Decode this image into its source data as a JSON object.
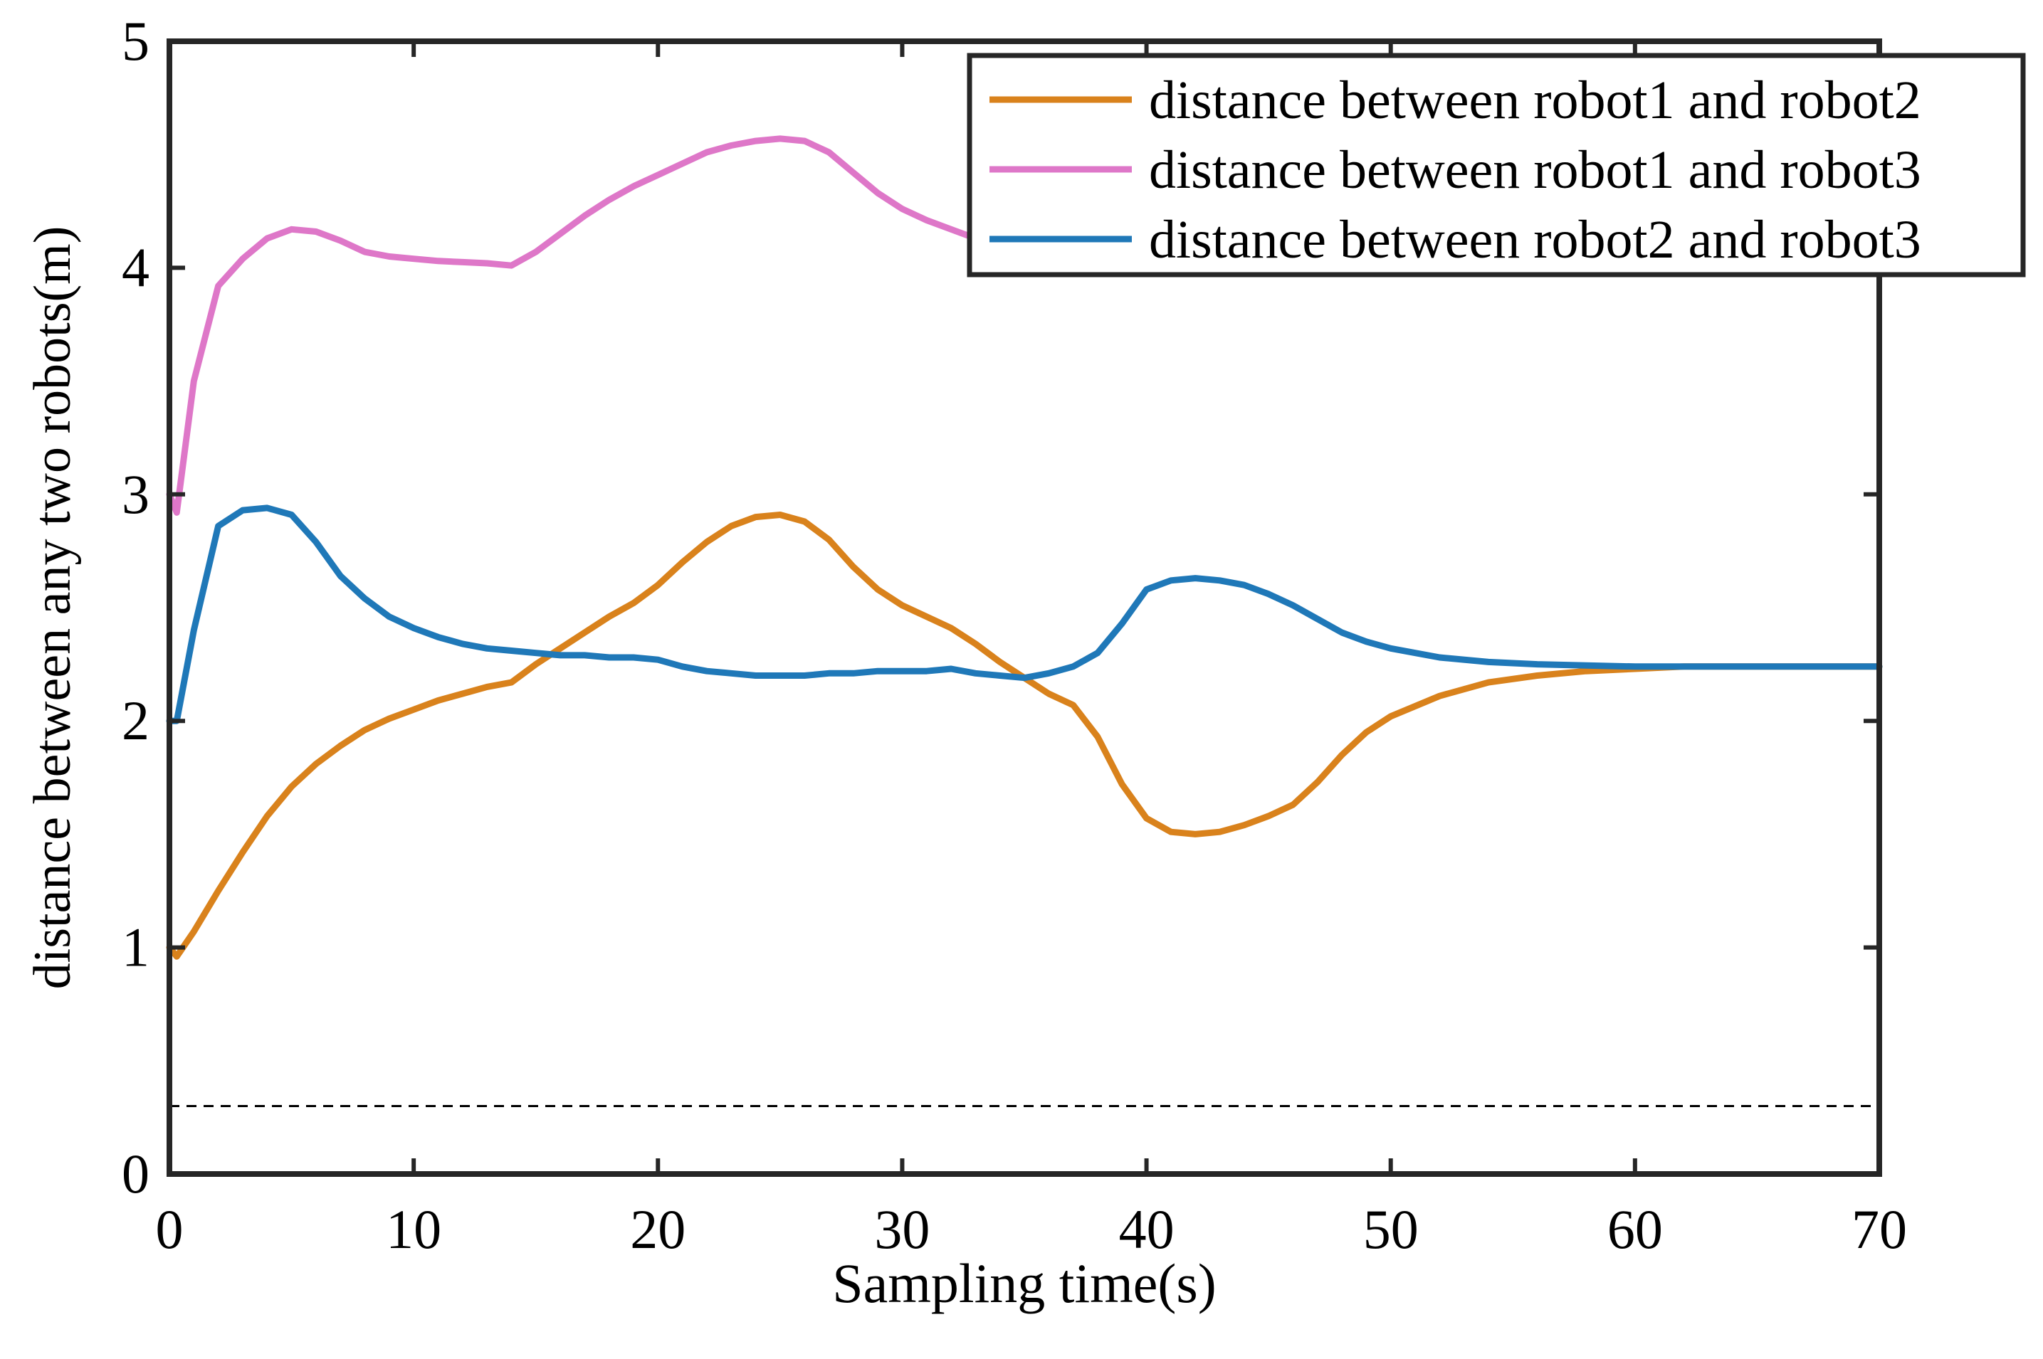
{
  "chart_data": {
    "type": "line",
    "title": "",
    "xlabel": "Sampling time(s)",
    "ylabel": "distance between any two robots(m)",
    "xlim": [
      0,
      70
    ],
    "ylim": [
      0,
      5
    ],
    "xticks": [
      0,
      10,
      20,
      30,
      40,
      50,
      60,
      70
    ],
    "yticks": [
      0,
      1,
      2,
      3,
      4,
      5
    ],
    "xtick_labels": [
      "0",
      "10",
      "20",
      "30",
      "40",
      "50",
      "60",
      "70"
    ],
    "ytick_labels": [
      "0",
      "1",
      "2",
      "3",
      "4",
      "5"
    ],
    "grid": false,
    "legend_position": "top-right",
    "reference_line": {
      "y": 0.3,
      "style": "dashed",
      "color": "#000000"
    },
    "series": [
      {
        "name": "distance between robot1 and robot2",
        "color": "#D9821C",
        "x": [
          0,
          0.3,
          1,
          2,
          3,
          4,
          5,
          6,
          7,
          8,
          9,
          10,
          11,
          12,
          13,
          14,
          15,
          16,
          17,
          18,
          19,
          20,
          21,
          22,
          23,
          24,
          25,
          26,
          27,
          28,
          29,
          30,
          31,
          32,
          33,
          34,
          35,
          36,
          37,
          38,
          39,
          40,
          41,
          42,
          43,
          44,
          45,
          46,
          47,
          48,
          49,
          50,
          52,
          54,
          56,
          58,
          60,
          62,
          65,
          70
        ],
        "y": [
          1.0,
          0.96,
          1.07,
          1.25,
          1.42,
          1.58,
          1.71,
          1.81,
          1.89,
          1.96,
          2.01,
          2.05,
          2.09,
          2.12,
          2.15,
          2.17,
          2.25,
          2.32,
          2.39,
          2.46,
          2.52,
          2.6,
          2.7,
          2.79,
          2.86,
          2.9,
          2.91,
          2.88,
          2.8,
          2.68,
          2.58,
          2.51,
          2.46,
          2.41,
          2.34,
          2.26,
          2.19,
          2.12,
          2.07,
          1.93,
          1.72,
          1.57,
          1.51,
          1.5,
          1.51,
          1.54,
          1.58,
          1.63,
          1.73,
          1.85,
          1.95,
          2.02,
          2.11,
          2.17,
          2.2,
          2.22,
          2.23,
          2.24,
          2.24,
          2.24
        ]
      },
      {
        "name": "distance between robot1 and robot3",
        "color": "#DE77C8",
        "x": [
          0,
          0.3,
          1,
          2,
          3,
          4,
          5,
          6,
          7,
          8,
          9,
          10,
          11,
          12,
          13,
          14,
          15,
          16,
          17,
          18,
          19,
          20,
          21,
          22,
          23,
          24,
          25,
          26,
          27,
          28,
          29,
          30,
          31,
          32,
          33
        ],
        "y": [
          3.0,
          2.92,
          3.5,
          3.92,
          4.04,
          4.13,
          4.17,
          4.16,
          4.12,
          4.07,
          4.05,
          4.04,
          4.03,
          4.025,
          4.02,
          4.01,
          4.07,
          4.15,
          4.23,
          4.3,
          4.36,
          4.41,
          4.46,
          4.51,
          4.54,
          4.56,
          4.57,
          4.56,
          4.51,
          4.42,
          4.33,
          4.26,
          4.21,
          4.17,
          4.13
        ]
      },
      {
        "name": "distance between robot2 and robot3",
        "color": "#1F78B8",
        "x": [
          0,
          0.3,
          1,
          2,
          3,
          4,
          5,
          6,
          7,
          8,
          9,
          10,
          11,
          12,
          13,
          14,
          15,
          16,
          17,
          18,
          19,
          20,
          21,
          22,
          23,
          24,
          25,
          26,
          27,
          28,
          29,
          30,
          31,
          32,
          33,
          34,
          35,
          36,
          37,
          38,
          39,
          40,
          41,
          42,
          43,
          44,
          45,
          46,
          47,
          48,
          49,
          50,
          52,
          54,
          56,
          58,
          60,
          62,
          65,
          70
        ],
        "y": [
          2.0,
          2.0,
          2.4,
          2.86,
          2.93,
          2.94,
          2.91,
          2.79,
          2.64,
          2.54,
          2.46,
          2.41,
          2.37,
          2.34,
          2.32,
          2.31,
          2.3,
          2.29,
          2.29,
          2.28,
          2.28,
          2.27,
          2.24,
          2.22,
          2.21,
          2.2,
          2.2,
          2.2,
          2.21,
          2.21,
          2.22,
          2.22,
          2.22,
          2.23,
          2.21,
          2.2,
          2.19,
          2.21,
          2.24,
          2.3,
          2.43,
          2.58,
          2.62,
          2.63,
          2.62,
          2.6,
          2.56,
          2.51,
          2.45,
          2.39,
          2.35,
          2.32,
          2.28,
          2.26,
          2.25,
          2.245,
          2.24,
          2.24,
          2.24,
          2.24
        ]
      }
    ]
  }
}
